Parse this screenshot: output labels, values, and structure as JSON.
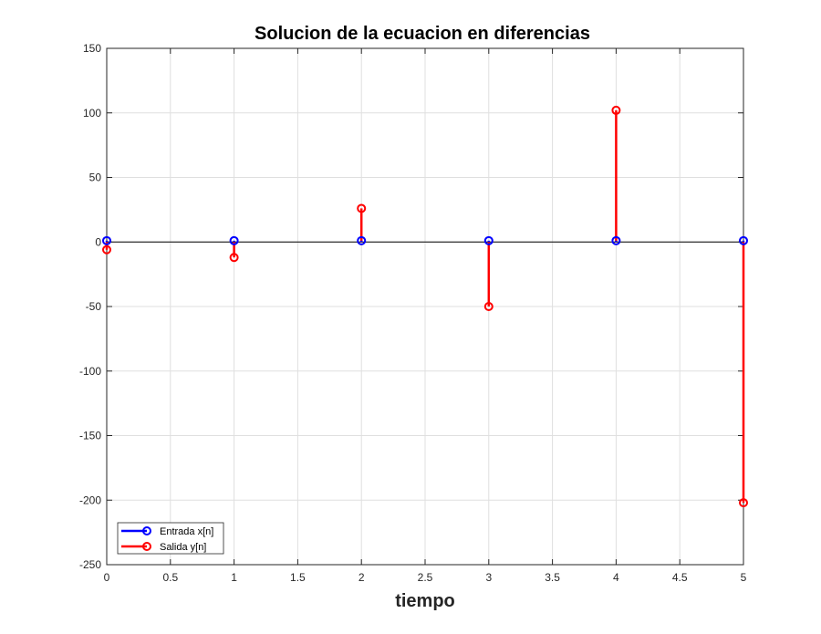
{
  "chart_data": {
    "type": "stem",
    "title": "Solucion de la ecuacion en diferencias",
    "xlabel": "tiempo",
    "ylabel": "",
    "xlim": [
      0,
      5
    ],
    "ylim": [
      -250,
      150
    ],
    "xticks": [
      0,
      0.5,
      1,
      1.5,
      2,
      2.5,
      3,
      3.5,
      4,
      4.5,
      5
    ],
    "yticks": [
      -250,
      -200,
      -150,
      -100,
      -50,
      0,
      50,
      100,
      150
    ],
    "grid": true,
    "legend_position": "bottom-left",
    "series": [
      {
        "name": "Entrada x[n]",
        "color": "#0000ff",
        "x": [
          0,
          1,
          2,
          3,
          4,
          5
        ],
        "values": [
          1,
          1,
          1,
          1,
          1,
          1
        ]
      },
      {
        "name": "Salida y[n]",
        "color": "#ff0000",
        "x": [
          0,
          1,
          2,
          3,
          4,
          5
        ],
        "values": [
          -6,
          -12,
          26,
          -50,
          102,
          -202
        ]
      }
    ]
  }
}
